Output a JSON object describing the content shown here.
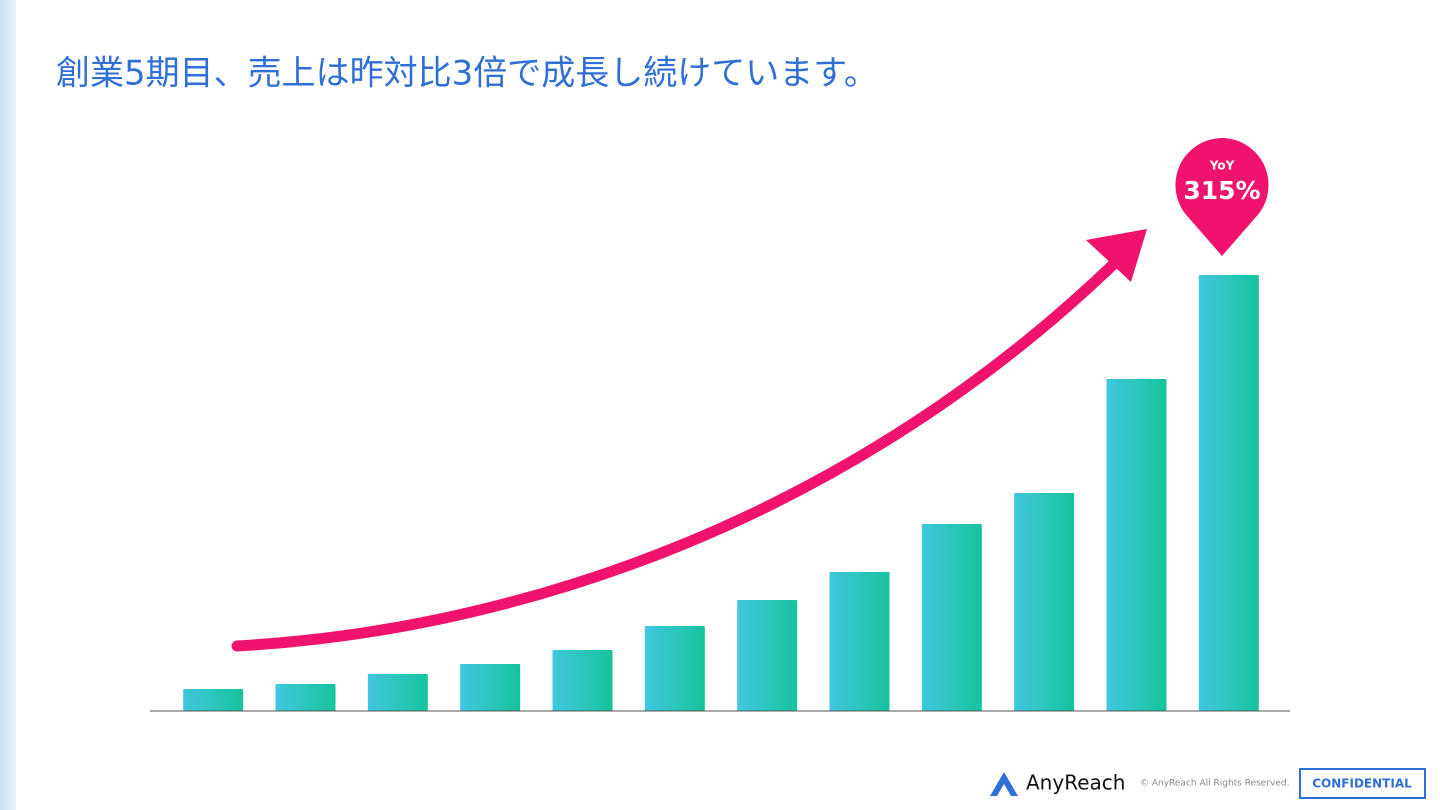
{
  "chart_data": {
    "type": "bar",
    "title": "創業5期目、売上は昨対比3倍で成長し続けています。",
    "categories": [
      null,
      null,
      null,
      null,
      null,
      null,
      null,
      null,
      null,
      null,
      null,
      null
    ],
    "values": [
      22,
      27,
      37,
      47,
      61,
      85,
      111,
      139,
      187,
      218,
      332,
      436
    ],
    "colors": [
      "#40c7de",
      "#16c49c"
    ],
    "ylim": [
      0,
      450
    ],
    "grid": false,
    "annotation": {
      "label": "YoY",
      "text": "315%",
      "color": "#f0136e"
    }
  },
  "footer": {
    "brand": "AnyReach",
    "copyright": "© AnyReach All Rights Reserved.",
    "badge": "CONFIDENTIAL"
  }
}
